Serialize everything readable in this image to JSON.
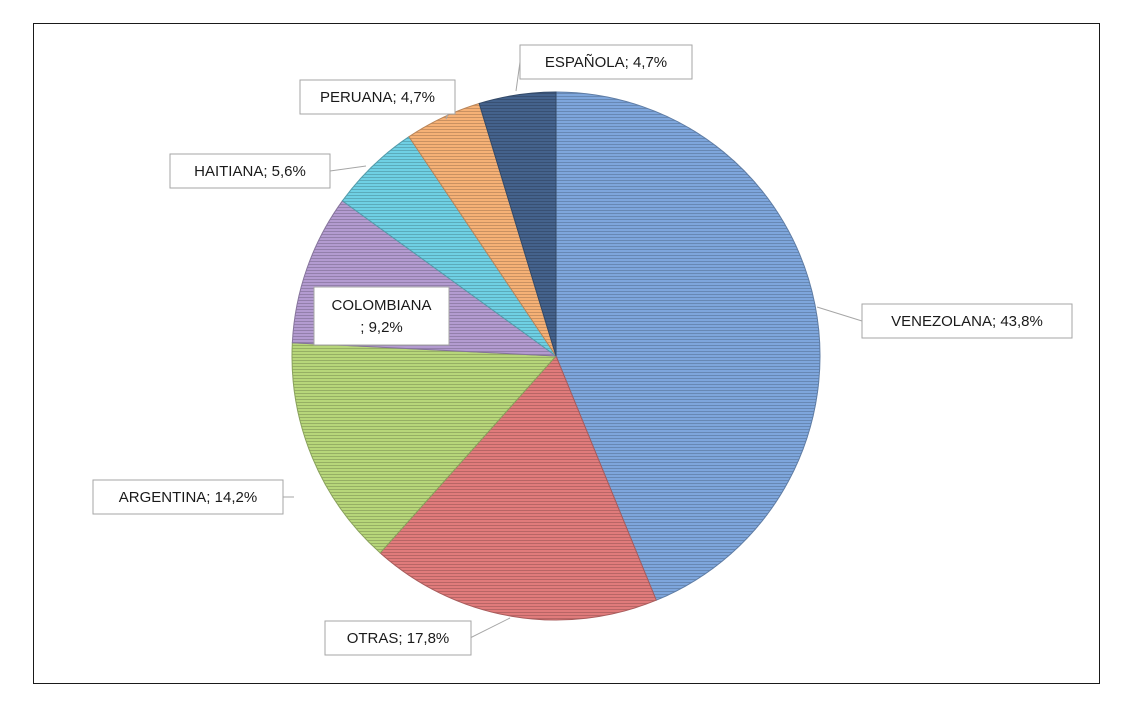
{
  "chart_data": {
    "type": "pie",
    "title": "",
    "slices": [
      {
        "name": "VENEZOLANA",
        "value": 43.8,
        "label": "VENEZOLANA; 43,8%",
        "color": "#7ea6dc"
      },
      {
        "name": "OTRAS",
        "value": 17.8,
        "label": "OTRAS; 17,8%",
        "color": "#e07b7b"
      },
      {
        "name": "ARGENTINA",
        "value": 14.2,
        "label": "ARGENTINA; 14,2%",
        "color": "#b7d67a"
      },
      {
        "name": "COLOMBIANA",
        "value": 9.2,
        "label_lines": [
          "COLOMBIANA",
          "; 9,2%"
        ],
        "color": "#b39bd0"
      },
      {
        "name": "HAITIANA",
        "value": 5.6,
        "label": "HAITIANA; 5,6%",
        "color": "#6fd0e4"
      },
      {
        "name": "PERUANA",
        "value": 4.7,
        "label": "PERUANA; 4,7%",
        "color": "#f6b176"
      },
      {
        "name": "ESPAÑOLA",
        "value": 4.7,
        "label": "ESPAÑOLA; 4,7%",
        "color": "#44628c"
      }
    ],
    "start_angle_deg": 0,
    "direction": "clockwise",
    "grid": false,
    "legend": "none"
  }
}
